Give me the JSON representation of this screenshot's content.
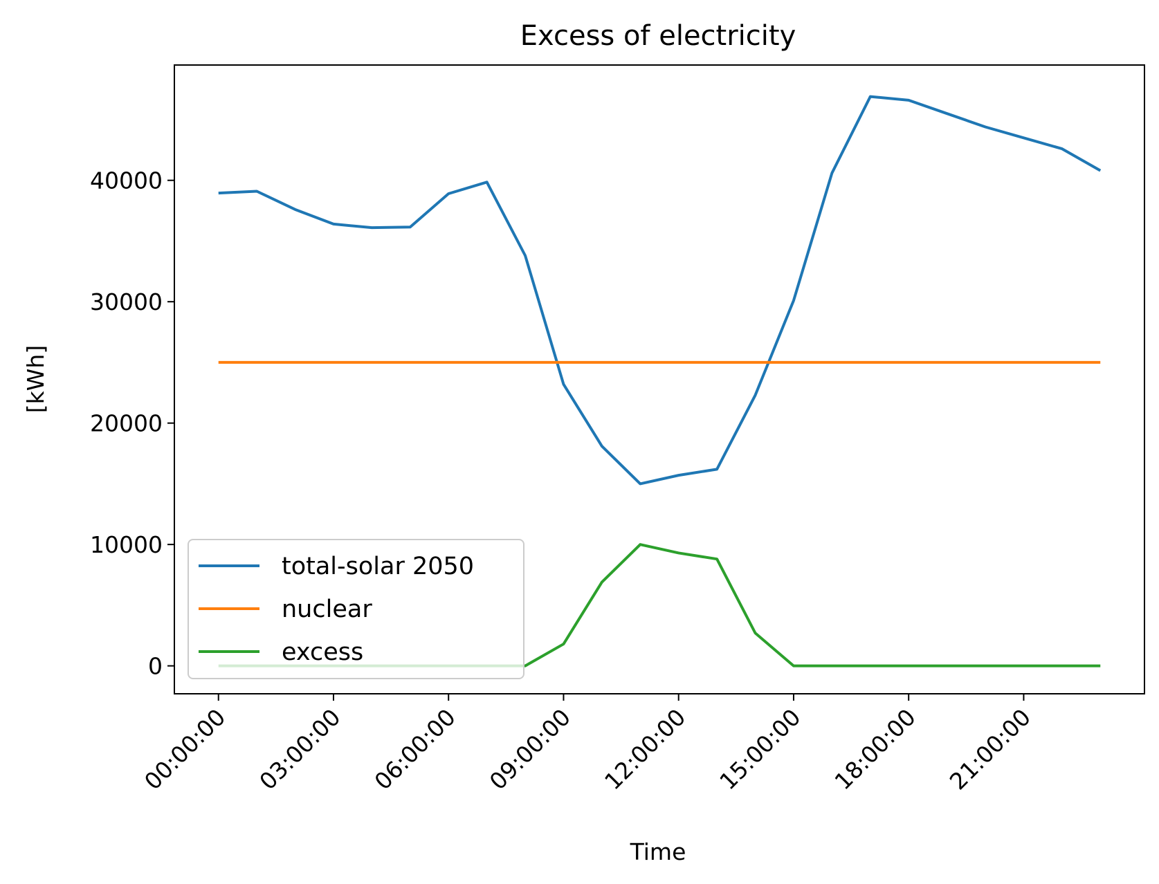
{
  "chart_data": {
    "type": "line",
    "title": "Excess of electricity",
    "xlabel": "Time",
    "ylabel": "[kWh]",
    "x": [
      0,
      1,
      2,
      3,
      4,
      5,
      6,
      7,
      8,
      9,
      10,
      11,
      12,
      13,
      14,
      15,
      16,
      17,
      18,
      19,
      20,
      21,
      22,
      23
    ],
    "x_units": "hour of day",
    "xticks": [
      0,
      3,
      6,
      9,
      12,
      15,
      18,
      21
    ],
    "xtick_labels": [
      "00:00:00",
      "03:00:00",
      "06:00:00",
      "09:00:00",
      "12:00:00",
      "15:00:00",
      "18:00:00",
      "21:00:00"
    ],
    "yticks": [
      0,
      10000,
      20000,
      30000,
      40000
    ],
    "ytick_labels": [
      "0",
      "10000",
      "20000",
      "30000",
      "40000"
    ],
    "xlim": [
      -1.15,
      24.15
    ],
    "ylim": [
      -2300,
      49500
    ],
    "grid": false,
    "legend_position": "lower-left",
    "series": [
      {
        "name": "total-solar 2050",
        "color": "#1f77b4",
        "values": [
          38950,
          39100,
          37600,
          36400,
          36100,
          36150,
          38900,
          39850,
          33800,
          23200,
          18100,
          15000,
          15700,
          16200,
          22300,
          30100,
          40600,
          46900,
          46600,
          45500,
          44400,
          43500,
          42600,
          40800
        ]
      },
      {
        "name": "nuclear",
        "color": "#ff7f0e",
        "values": [
          25000,
          25000,
          25000,
          25000,
          25000,
          25000,
          25000,
          25000,
          25000,
          25000,
          25000,
          25000,
          25000,
          25000,
          25000,
          25000,
          25000,
          25000,
          25000,
          25000,
          25000,
          25000,
          25000,
          25000
        ]
      },
      {
        "name": "excess",
        "color": "#2ca02c",
        "values": [
          0,
          0,
          0,
          0,
          0,
          0,
          0,
          0,
          0,
          1800,
          6900,
          10000,
          9300,
          8800,
          2700,
          0,
          0,
          0,
          0,
          0,
          0,
          0,
          0,
          0
        ]
      }
    ]
  }
}
